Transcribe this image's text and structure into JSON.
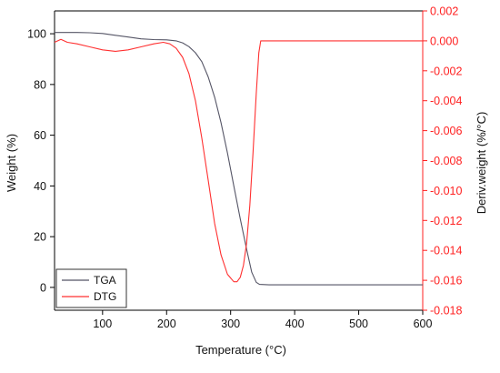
{
  "chart_data": {
    "type": "line",
    "xlabel": "Temperature (°C)",
    "ylabel_left": "Weight (%)",
    "ylabel_right": "Deriv.weight (%/°C)",
    "xlim": [
      25,
      600
    ],
    "ylim_left": [
      -9,
      109
    ],
    "ylim_right": [
      -0.018,
      0.002
    ],
    "x_ticks": [
      100,
      200,
      300,
      400,
      500,
      600
    ],
    "y_left_ticks": [
      0,
      20,
      40,
      60,
      80,
      100
    ],
    "y_right_ticks": [
      0.002,
      0.0,
      -0.002,
      -0.004,
      -0.006,
      -0.008,
      -0.01,
      -0.012,
      -0.014,
      -0.016,
      -0.018
    ],
    "y_right_tick_labels": [
      "0.002",
      "0.000",
      "-0.002",
      "-0.004",
      "-0.006",
      "-0.008",
      "-0.010",
      "-0.012",
      "-0.014",
      "-0.016",
      "-0.018"
    ],
    "legend_position": "bottom-left",
    "grid": false,
    "colors": {
      "left_axis": "#000000",
      "right_axis": "#ff2020"
    },
    "series": [
      {
        "name": "TGA",
        "axis": "left",
        "color": "#555566",
        "points": [
          [
            25,
            100.5
          ],
          [
            60,
            100.5
          ],
          [
            80,
            100.4
          ],
          [
            100,
            100.1
          ],
          [
            120,
            99.4
          ],
          [
            140,
            98.7
          ],
          [
            160,
            98.0
          ],
          [
            180,
            97.7
          ],
          [
            200,
            97.6
          ],
          [
            215,
            97.2
          ],
          [
            225,
            96.4
          ],
          [
            235,
            94.9
          ],
          [
            245,
            92.5
          ],
          [
            255,
            89.0
          ],
          [
            265,
            83.0
          ],
          [
            275,
            75.0
          ],
          [
            285,
            65.0
          ],
          [
            295,
            53.0
          ],
          [
            305,
            40.0
          ],
          [
            315,
            27.0
          ],
          [
            325,
            15.0
          ],
          [
            333,
            6.0
          ],
          [
            340,
            2.0
          ],
          [
            345,
            1.2
          ],
          [
            360,
            1.0
          ],
          [
            400,
            1.0
          ],
          [
            500,
            1.0
          ],
          [
            600,
            1.0
          ]
        ]
      },
      {
        "name": "DTG",
        "axis": "right",
        "color": "#ff3030",
        "points": [
          [
            25,
            -0.0001
          ],
          [
            35,
            0.0001
          ],
          [
            45,
            -0.0001
          ],
          [
            60,
            -0.0002
          ],
          [
            80,
            -0.0004
          ],
          [
            100,
            -0.0006
          ],
          [
            120,
            -0.0007
          ],
          [
            140,
            -0.0006
          ],
          [
            160,
            -0.0004
          ],
          [
            180,
            -0.0002
          ],
          [
            195,
            -0.0001
          ],
          [
            205,
            -0.0002
          ],
          [
            215,
            -0.0005
          ],
          [
            225,
            -0.0011
          ],
          [
            235,
            -0.0022
          ],
          [
            245,
            -0.004
          ],
          [
            255,
            -0.0065
          ],
          [
            265,
            -0.0093
          ],
          [
            275,
            -0.0122
          ],
          [
            285,
            -0.0143
          ],
          [
            295,
            -0.0156
          ],
          [
            305,
            -0.0161
          ],
          [
            310,
            -0.0161
          ],
          [
            315,
            -0.0158
          ],
          [
            320,
            -0.015
          ],
          [
            325,
            -0.0135
          ],
          [
            330,
            -0.011
          ],
          [
            335,
            -0.0075
          ],
          [
            340,
            -0.0035
          ],
          [
            344,
            -0.0008
          ],
          [
            347,
            0.0
          ],
          [
            360,
            0.0
          ],
          [
            400,
            0.0
          ],
          [
            500,
            0.0
          ],
          [
            600,
            0.0
          ]
        ]
      }
    ]
  }
}
